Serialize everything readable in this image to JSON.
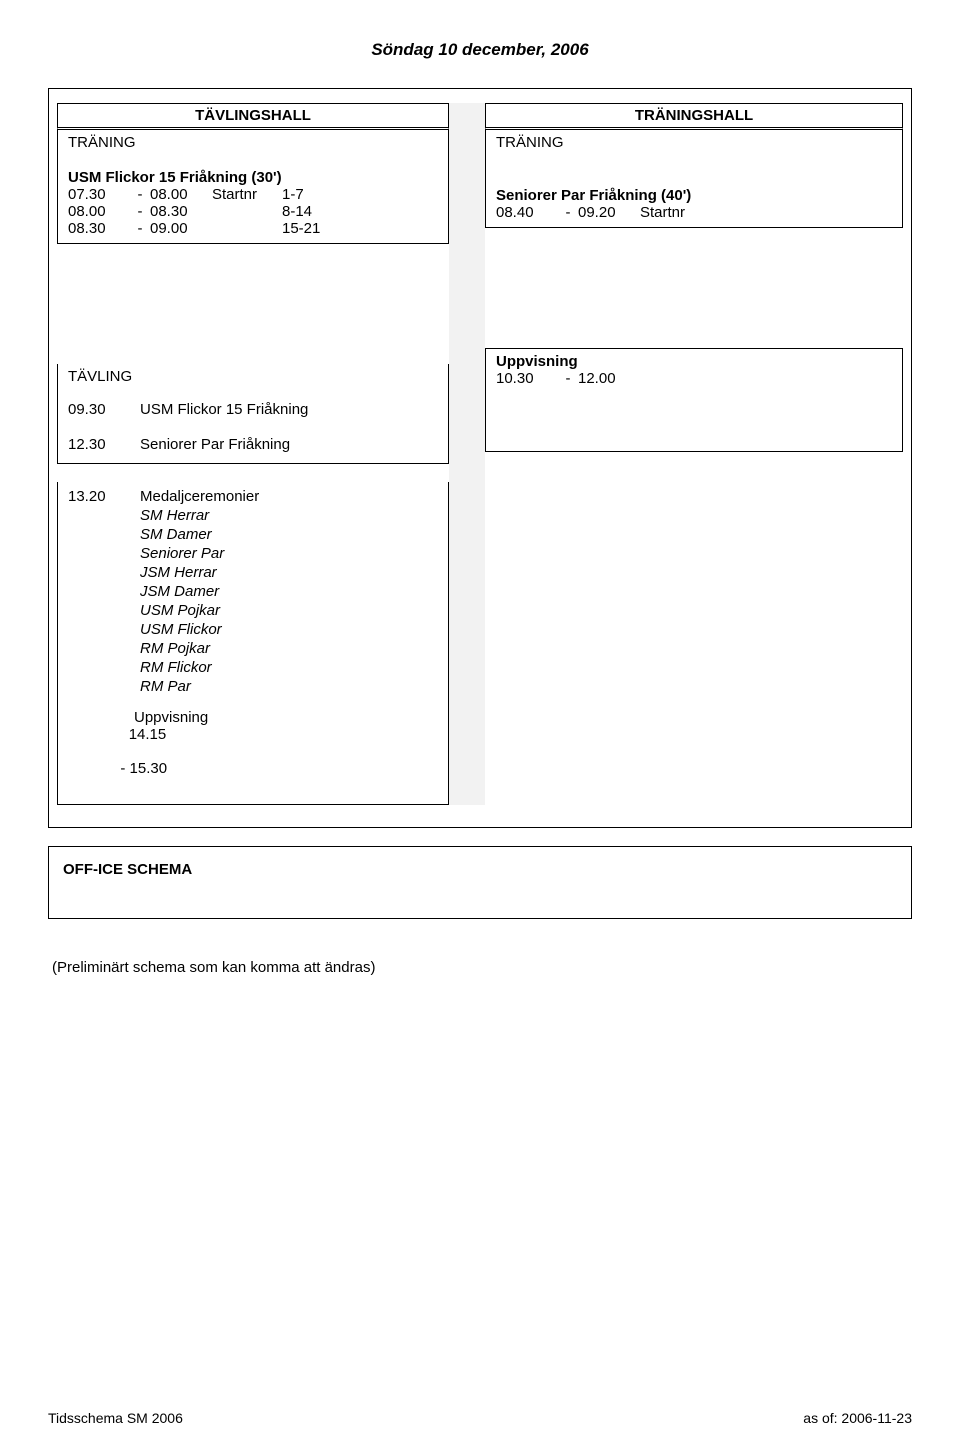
{
  "title": "Söndag 10 december, 2006",
  "left": {
    "header": "TÄVLINGSHALL",
    "block1_title": "TRÄNING",
    "block1_subtitle": "USM Flickor 15 Friåkning (30')",
    "block1_rows": [
      {
        "a": "07.30",
        "b": "-",
        "c": "08.00",
        "d": "Startnr",
        "e": "1-7"
      },
      {
        "a": "08.00",
        "b": "-",
        "c": "08.30",
        "d": "",
        "e": "8-14"
      },
      {
        "a": "08.30",
        "b": "-",
        "c": "09.00",
        "d": "",
        "e": "15-21"
      }
    ],
    "block2_title": "TÄVLING",
    "block2_rows": [
      {
        "t": "09.30",
        "txt": "USM Flickor 15 Friåkning"
      },
      {
        "t": "12.30",
        "txt": "Seniorer Par Friåkning"
      }
    ],
    "block3_rows_head": {
      "t": "13.20",
      "txt": "Medaljceremonier"
    },
    "block3_items": [
      "SM Herrar",
      "SM Damer",
      "Seniorer Par",
      "JSM Herrar",
      "JSM Damer",
      "USM Pojkar",
      "USM Flickor",
      "RM Pojkar",
      "RM Flickor",
      "RM Par"
    ],
    "block3_tail_time": "  14.15\n- 15.30",
    "block3_tail_time_a": "14.15",
    "block3_tail_time_b": "- 15.30",
    "block3_tail_txt": "Uppvisning"
  },
  "right": {
    "header": "TRÄNINGSHALL",
    "block1_title": "TRÄNING",
    "block1_subtitle": "Seniorer Par Friåkning (40')",
    "block1_rows": [
      {
        "a": "08.40",
        "b": "-",
        "c": "09.20",
        "d": "Startnr",
        "e": ""
      }
    ],
    "block2_title": "Uppvisning",
    "block2_row": {
      "a": "10.30",
      "b": "-",
      "c": "12.00"
    }
  },
  "off_ice": "OFF-ICE SCHEMA",
  "note": "(Preliminärt schema som kan komma att ändras)",
  "footer_left": "Tidsschema SM 2006",
  "footer_right": "as of: 2006-11-23"
}
